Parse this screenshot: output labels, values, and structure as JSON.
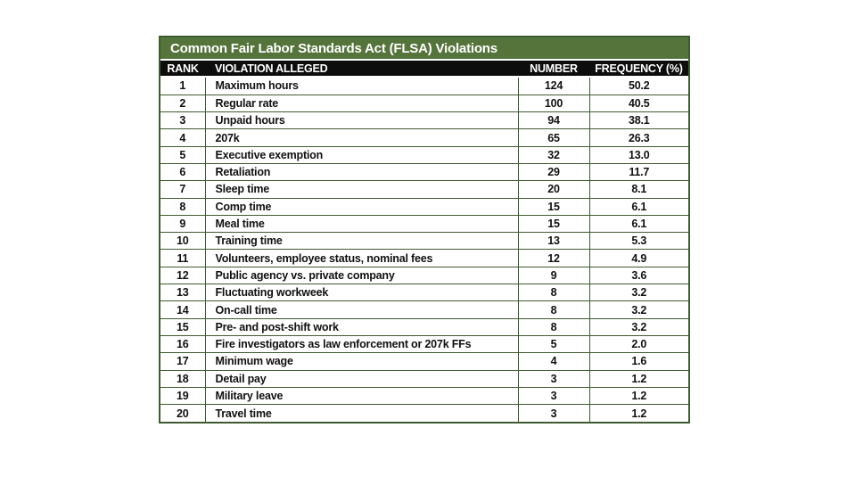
{
  "colors": {
    "title_bg": "#55743C",
    "border": "#3F5A31",
    "header_bg": "#0D0D0D",
    "header_text": "#FFFFFF",
    "body_text": "#111111",
    "page_bg": "#FFFFFF"
  },
  "chart_data": {
    "type": "table",
    "title": "Common Fair Labor Standards Act (FLSA) Violations",
    "columns": [
      "RANK",
      "VIOLATION ALLEGED",
      "NUMBER",
      "FREQUENCY (%)"
    ],
    "rows": [
      [
        "1",
        "Maximum hours",
        "124",
        "50.2"
      ],
      [
        "2",
        "Regular rate",
        "100",
        "40.5"
      ],
      [
        "3",
        "Unpaid hours",
        "94",
        "38.1"
      ],
      [
        "4",
        "207k",
        "65",
        "26.3"
      ],
      [
        "5",
        "Executive exemption",
        "32",
        "13.0"
      ],
      [
        "6",
        "Retaliation",
        "29",
        "11.7"
      ],
      [
        "7",
        "Sleep time",
        "20",
        "8.1"
      ],
      [
        "8",
        "Comp time",
        "15",
        "6.1"
      ],
      [
        "9",
        "Meal time",
        "15",
        "6.1"
      ],
      [
        "10",
        "Training time",
        "13",
        "5.3"
      ],
      [
        "11",
        "Volunteers, employee status, nominal fees",
        "12",
        "4.9"
      ],
      [
        "12",
        "Public agency vs. private company",
        "9",
        "3.6"
      ],
      [
        "13",
        "Fluctuating workweek",
        "8",
        "3.2"
      ],
      [
        "14",
        "On-call time",
        "8",
        "3.2"
      ],
      [
        "15",
        "Pre- and post-shift work",
        "8",
        "3.2"
      ],
      [
        "16",
        "Fire investigators as law enforcement or 207k FFs",
        "5",
        "2.0"
      ],
      [
        "17",
        "Minimum wage",
        "4",
        "1.6"
      ],
      [
        "18",
        "Detail pay",
        "3",
        "1.2"
      ],
      [
        "19",
        "Military leave",
        "3",
        "1.2"
      ],
      [
        "20",
        "Travel time",
        "3",
        "1.2"
      ]
    ]
  }
}
